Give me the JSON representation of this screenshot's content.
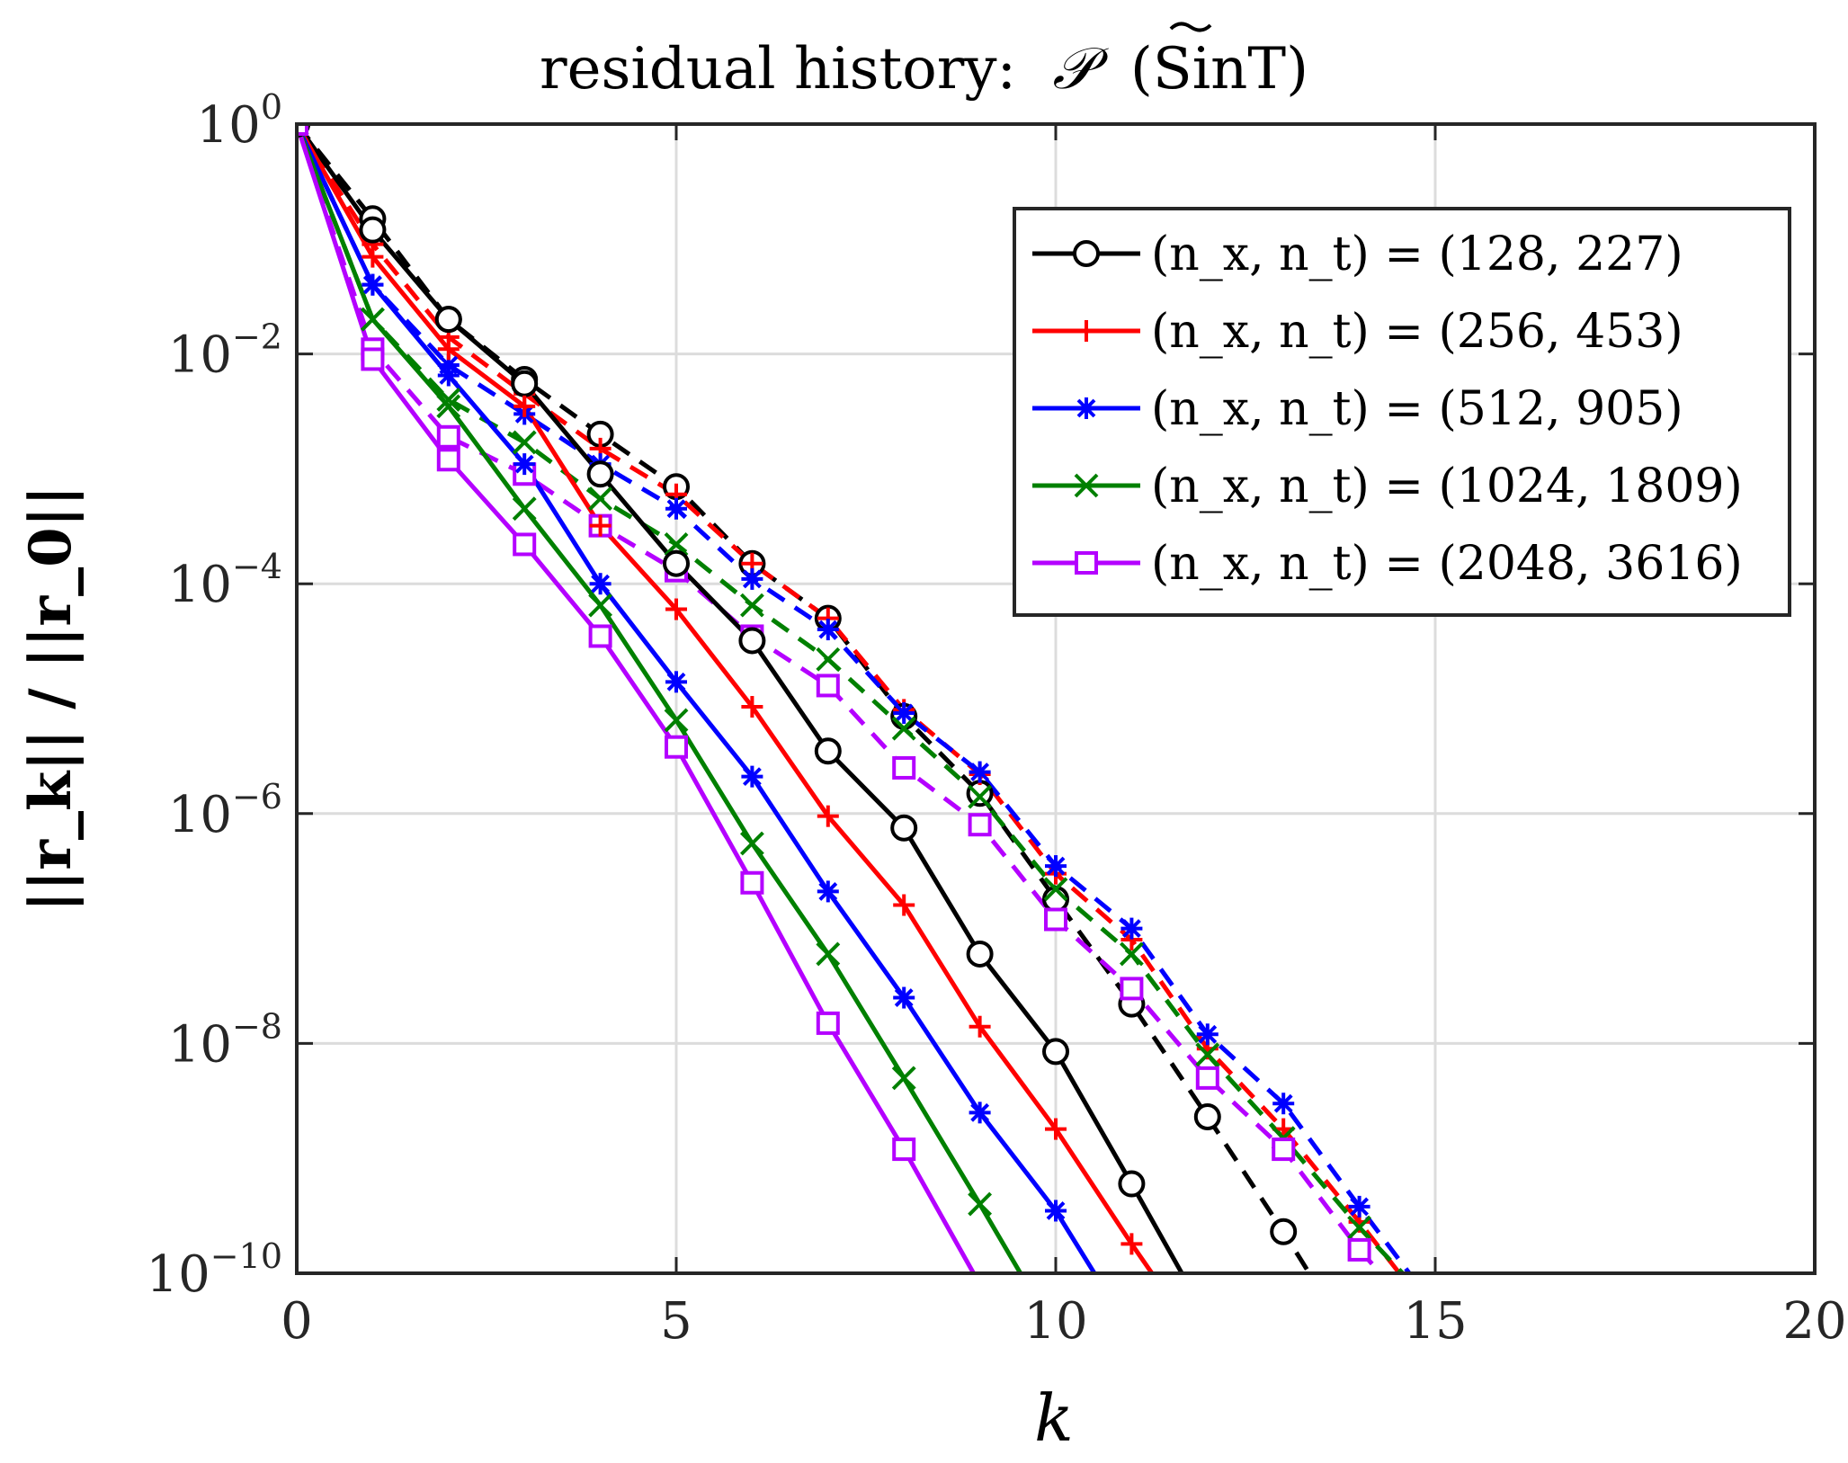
{
  "chart_data": {
    "type": "line",
    "title": "residual history: ̃𝒫 (SinT)",
    "title_main": "residual history:",
    "title_symbol": "𝒫",
    "title_suffix": "(SinT)",
    "xlabel": "k",
    "ylabel": "||r_k|| / ||r_0||",
    "x_scale": "linear",
    "y_scale": "log",
    "xlim": [
      0,
      20
    ],
    "ylim": [
      1e-10,
      1
    ],
    "x_ticks": [
      "0",
      "5",
      "10",
      "15",
      "20"
    ],
    "y_tick_exponents": [
      "0",
      "−2",
      "−4",
      "−6",
      "−8",
      "−10"
    ],
    "y_tick_base": "10",
    "grid": true,
    "legend_position": "top-right",
    "legend_entries": [
      "(n_x, n_t) = (128, 227)",
      "(n_x, n_t) = (256, 453)",
      "(n_x, n_t) = (512, 905)",
      "(n_x, n_t) = (1024, 1809)",
      "(n_x, n_t) = (2048, 3616)"
    ],
    "series": [
      {
        "name": "(n_x, n_t) = (128, 227)",
        "color": "#000000",
        "marker": "circle",
        "style": "solid",
        "x": [
          0,
          1,
          2,
          3,
          4,
          5,
          6,
          7,
          8,
          9,
          10,
          11,
          12
        ],
        "y": [
          1,
          0.12,
          0.02,
          0.0055,
          0.0009,
          0.00015,
          3.2e-05,
          3.5e-06,
          7.5e-07,
          6e-08,
          8.5e-09,
          6e-10,
          4e-11
        ]
      },
      {
        "name": "(n_x, n_t) = (256, 453)",
        "color": "#ff0000",
        "marker": "plus",
        "style": "solid",
        "x": [
          0,
          1,
          2,
          3,
          4,
          5,
          6,
          7,
          8,
          9,
          10,
          11,
          12
        ],
        "y": [
          1,
          0.07,
          0.011,
          0.0035,
          0.00032,
          6e-05,
          8.5e-06,
          9.5e-07,
          1.6e-07,
          1.4e-08,
          1.8e-09,
          1.8e-10,
          2e-11
        ]
      },
      {
        "name": "(n_x, n_t) = (512, 905)",
        "color": "#0000ff",
        "marker": "asterisk",
        "style": "solid",
        "x": [
          0,
          1,
          2,
          3,
          4,
          5,
          6,
          7,
          8,
          9,
          10,
          11
        ],
        "y": [
          1,
          0.04,
          0.0065,
          0.0011,
          0.0001,
          1.4e-05,
          2.1e-06,
          2.1e-07,
          2.5e-08,
          2.5e-09,
          3.5e-10,
          3e-11
        ]
      },
      {
        "name": "(n_x, n_t) = (1024, 1809)",
        "color": "#008000",
        "marker": "x",
        "style": "solid",
        "x": [
          0,
          1,
          2,
          3,
          4,
          5,
          6,
          7,
          8,
          9,
          10
        ],
        "y": [
          1,
          0.02,
          0.0035,
          0.00045,
          6.5e-05,
          6.5e-06,
          5.5e-07,
          6e-08,
          5e-09,
          4e-10,
          3e-11
        ]
      },
      {
        "name": "(n_x, n_t) = (2048, 3616)",
        "color": "#b400ff",
        "marker": "square",
        "style": "solid",
        "x": [
          0,
          1,
          2,
          3,
          4,
          5,
          6,
          7,
          8,
          9
        ],
        "y": [
          1,
          0.009,
          0.0012,
          0.00022,
          3.5e-05,
          3.8e-06,
          2.5e-07,
          1.5e-08,
          1.2e-09,
          8e-11
        ]
      },
      {
        "name": "(n_x, n_t) = (128, 227) dashed",
        "color": "#000000",
        "marker": "circle",
        "style": "dashed",
        "x": [
          0,
          1,
          2,
          3,
          4,
          5,
          6,
          7,
          8,
          9,
          10,
          11,
          12,
          13,
          14
        ],
        "y": [
          1,
          0.15,
          0.02,
          0.006,
          0.002,
          0.0007,
          0.00015,
          5e-05,
          7e-06,
          1.5e-06,
          1.8e-07,
          2.2e-08,
          2.3e-09,
          2.3e-10,
          2e-11
        ]
      },
      {
        "name": "(n_x, n_t) = (256, 453) dashed",
        "color": "#ff0000",
        "marker": "plus",
        "style": "dashed",
        "x": [
          0,
          1,
          2,
          3,
          4,
          5,
          6,
          7,
          8,
          9,
          10,
          11,
          12,
          13,
          14,
          15
        ],
        "y": [
          1,
          0.09,
          0.014,
          0.0045,
          0.0015,
          0.0006,
          0.00015,
          5e-05,
          8e-06,
          2.2e-06,
          3e-07,
          8e-08,
          9e-09,
          1.8e-09,
          2.8e-10,
          4e-11
        ]
      },
      {
        "name": "(n_x, n_t) = (512, 905) dashed",
        "color": "#0000ff",
        "marker": "asterisk",
        "style": "dashed",
        "x": [
          0,
          1,
          2,
          3,
          4,
          5,
          6,
          7,
          8,
          9,
          10,
          11,
          12,
          13,
          14,
          15
        ],
        "y": [
          1,
          0.04,
          0.008,
          0.003,
          0.0011,
          0.00045,
          0.00011,
          4e-05,
          7.5e-06,
          2.3e-06,
          3.5e-07,
          1e-07,
          1.2e-08,
          3e-09,
          3.8e-10,
          5e-11
        ]
      },
      {
        "name": "(n_x, n_t) = (1024, 1809) dashed",
        "color": "#008000",
        "marker": "x",
        "style": "dashed",
        "x": [
          0,
          1,
          2,
          3,
          4,
          5,
          6,
          7,
          8,
          9,
          10,
          11,
          12,
          13,
          14,
          15
        ],
        "y": [
          1,
          0.02,
          0.004,
          0.0017,
          0.00055,
          0.00022,
          6.5e-05,
          2.2e-05,
          5.5e-06,
          1.4e-06,
          2.2e-07,
          6e-08,
          8e-09,
          1.5e-09,
          2.5e-10,
          5e-11
        ]
      },
      {
        "name": "(n_x, n_t) = (2048, 3616) dashed",
        "color": "#b400ff",
        "marker": "square",
        "style": "dashed",
        "x": [
          0,
          1,
          2,
          3,
          4,
          5,
          6,
          7,
          8,
          9,
          10,
          11,
          12,
          13,
          14,
          15
        ],
        "y": [
          1,
          0.011,
          0.0019,
          0.0009,
          0.00032,
          0.00013,
          3.5e-05,
          1.3e-05,
          2.5e-06,
          8e-07,
          1.2e-07,
          3e-08,
          5e-09,
          1.2e-09,
          1.6e-10,
          3e-11
        ]
      }
    ]
  }
}
